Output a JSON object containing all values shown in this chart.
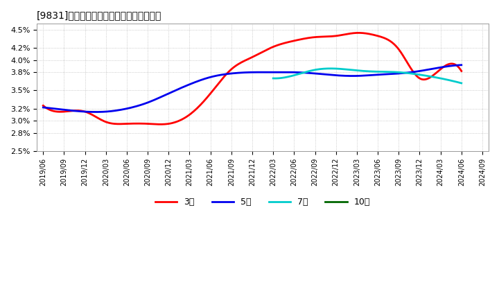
{
  "title": "[9831]　経常利益マージンの平均値の推移",
  "background_color": "#ffffff",
  "plot_bg_color": "#ffffff",
  "grid_color": "#bbbbbb",
  "ylim": [
    0.025,
    0.046
  ],
  "ytick_positions": [
    0.025,
    0.028,
    0.03,
    0.032,
    0.035,
    0.038,
    0.04,
    0.042,
    0.045
  ],
  "ytick_labels": [
    "2.5%",
    "2.8%",
    "3.0%",
    "3.2%",
    "3.5%",
    "3.8%",
    "4.0%",
    "4.2%",
    "4.5%"
  ],
  "x_labels": [
    "2019/06",
    "2019/09",
    "2019/12",
    "2020/03",
    "2020/06",
    "2020/09",
    "2020/12",
    "2021/03",
    "2021/06",
    "2021/09",
    "2021/12",
    "2022/03",
    "2022/06",
    "2022/09",
    "2022/12",
    "2023/03",
    "2023/06",
    "2023/09",
    "2023/12",
    "2024/03",
    "2024/06",
    "2024/09"
  ],
  "series_3yr": {
    "label": "3年",
    "color": "#ff0000",
    "x": [
      0,
      1,
      2,
      3,
      4,
      5,
      6,
      7,
      8,
      9,
      10,
      11,
      12,
      13,
      14,
      15,
      16,
      17,
      18,
      19,
      20
    ],
    "y": [
      0.0325,
      0.0315,
      0.0315,
      0.0298,
      0.0295,
      0.0295,
      0.0295,
      0.031,
      0.0345,
      0.0385,
      0.0405,
      0.0422,
      0.0432,
      0.0438,
      0.044,
      0.0445,
      0.044,
      0.0418,
      0.037,
      0.0385,
      0.0382
    ]
  },
  "series_5yr": {
    "label": "5年",
    "color": "#0000ee",
    "x": [
      0,
      1,
      2,
      3,
      4,
      5,
      6,
      7,
      8,
      9,
      10,
      11,
      12,
      13,
      14,
      15,
      16,
      17,
      18,
      19,
      20
    ],
    "y": [
      0.0322,
      0.0318,
      0.0315,
      0.0315,
      0.032,
      0.033,
      0.0345,
      0.036,
      0.0372,
      0.0378,
      0.038,
      0.038,
      0.038,
      0.0378,
      0.0375,
      0.0374,
      0.0376,
      0.0378,
      0.0382,
      0.0388,
      0.0392
    ]
  },
  "series_7yr": {
    "label": "7年",
    "color": "#00cccc",
    "x": [
      11,
      12,
      13,
      14,
      15,
      16,
      17,
      18,
      19,
      20
    ],
    "y": [
      0.037,
      0.0375,
      0.0384,
      0.0386,
      0.0383,
      0.0381,
      0.038,
      0.0376,
      0.037,
      0.0362
    ]
  },
  "series_10yr": {
    "label": "10年",
    "color": "#006600",
    "x": [],
    "y": []
  }
}
